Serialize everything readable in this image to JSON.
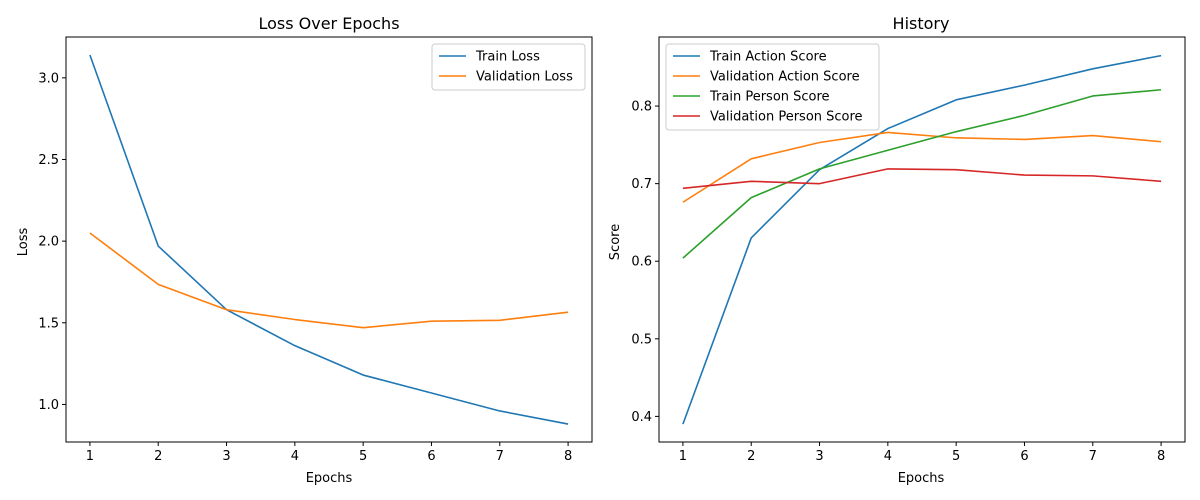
{
  "chart_data": [
    {
      "type": "line",
      "title": "Loss Over Epochs",
      "xlabel": "Epochs",
      "ylabel": "Loss",
      "x": [
        1,
        2,
        3,
        4,
        5,
        6,
        7,
        8
      ],
      "xlim": [
        0.65,
        8.35
      ],
      "ylim": [
        0.77,
        3.25
      ],
      "xticks": [
        1,
        2,
        3,
        4,
        5,
        6,
        7,
        8
      ],
      "yticks": [
        1.0,
        1.5,
        2.0,
        2.5,
        3.0
      ],
      "ytick_labels": [
        "1.0",
        "1.5",
        "2.0",
        "2.5",
        "3.0"
      ],
      "legend": "upper right",
      "grid": false,
      "series": [
        {
          "name": "Train Loss",
          "color": "#1f77b4",
          "values": [
            3.14,
            1.97,
            1.58,
            1.36,
            1.18,
            1.07,
            0.96,
            0.88
          ]
        },
        {
          "name": "Validation Loss",
          "color": "#ff7f0e",
          "values": [
            2.05,
            1.735,
            1.58,
            1.52,
            1.47,
            1.51,
            1.515,
            1.565
          ]
        }
      ]
    },
    {
      "type": "line",
      "title": "History",
      "xlabel": "Epochs",
      "ylabel": "Score",
      "x": [
        1,
        2,
        3,
        4,
        5,
        6,
        7,
        8
      ],
      "xlim": [
        0.65,
        8.35
      ],
      "ylim": [
        0.367,
        0.889
      ],
      "xticks": [
        1,
        2,
        3,
        4,
        5,
        6,
        7,
        8
      ],
      "yticks": [
        0.4,
        0.5,
        0.6,
        0.7,
        0.8
      ],
      "ytick_labels": [
        "0.4",
        "0.5",
        "0.6",
        "0.7",
        "0.8"
      ],
      "legend": "upper left",
      "grid": false,
      "series": [
        {
          "name": "Train Action Score",
          "color": "#1f77b4",
          "values": [
            0.39,
            0.63,
            0.718,
            0.771,
            0.808,
            0.827,
            0.848,
            0.865
          ]
        },
        {
          "name": "Validation Action Score",
          "color": "#ff7f0e",
          "values": [
            0.676,
            0.732,
            0.753,
            0.766,
            0.759,
            0.757,
            0.762,
            0.754
          ]
        },
        {
          "name": "Train Person Score",
          "color": "#2ca02c",
          "values": [
            0.604,
            0.682,
            0.719,
            0.743,
            0.767,
            0.788,
            0.813,
            0.821
          ]
        },
        {
          "name": "Validation Person Score",
          "color": "#d62728",
          "values": [
            0.694,
            0.703,
            0.7,
            0.719,
            0.718,
            0.711,
            0.71,
            0.703
          ]
        }
      ]
    }
  ]
}
